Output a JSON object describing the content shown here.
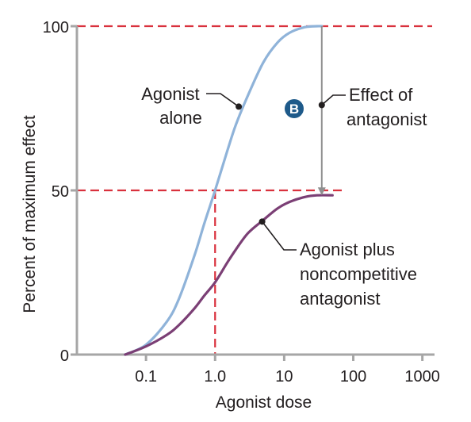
{
  "chart_data": {
    "type": "line",
    "title": "",
    "xlabel": "Agonist dose",
    "ylabel": "Percent of maximum effect",
    "xscale": "log",
    "xlim": [
      0.01,
      1500
    ],
    "ylim": [
      0,
      100
    ],
    "xticks": [
      {
        "value": 0.1,
        "label": "0.1"
      },
      {
        "value": 1,
        "label": "1.0"
      },
      {
        "value": 10,
        "label": "10"
      },
      {
        "value": 100,
        "label": "100"
      },
      {
        "value": 1000,
        "label": "1000"
      }
    ],
    "yticks": [
      {
        "value": 0,
        "label": "0"
      },
      {
        "value": 50,
        "label": "50"
      },
      {
        "value": 100,
        "label": "100"
      }
    ],
    "grid": false,
    "series": [
      {
        "name": "Agonist alone",
        "color": "#8fb3d9",
        "x": [
          0.05,
          0.1,
          0.2,
          0.3,
          0.5,
          0.7,
          1.0,
          1.5,
          2,
          3,
          5,
          8,
          12,
          20,
          30,
          35
        ],
        "y": [
          0,
          3,
          10,
          17,
          30,
          40,
          50,
          62,
          70,
          79,
          89,
          95,
          98,
          99.7,
          100,
          100
        ]
      },
      {
        "name": "Agonist plus noncompetitive antagonist",
        "color": "#7b3f75",
        "x": [
          0.05,
          0.1,
          0.2,
          0.3,
          0.5,
          0.7,
          1.0,
          1.5,
          2,
          3,
          5,
          8,
          12,
          20,
          30,
          50
        ],
        "y": [
          0,
          2.5,
          6,
          9,
          14,
          18,
          22,
          28,
          32,
          37,
          41,
          44.5,
          46.5,
          48,
          48.5,
          48.5
        ]
      }
    ],
    "reference_lines": [
      {
        "type": "horizontal",
        "y": 100,
        "color": "#d9313d",
        "style": "dashed"
      },
      {
        "type": "horizontal",
        "y": 50,
        "color": "#d9313d",
        "style": "dashed"
      },
      {
        "type": "vertical",
        "x": 1.0,
        "color": "#d9313d",
        "style": "dashed"
      }
    ],
    "effect_arrow": {
      "x": 35,
      "from_y": 100,
      "to_y": 48.5,
      "color": "#8f8f8f"
    },
    "annotations": {
      "agonist_alone": [
        "Agonist",
        "alone"
      ],
      "effect": [
        "Effect of",
        "antagonist"
      ],
      "badge": "B",
      "agonist_plus": [
        "Agonist plus",
        "noncompetitive",
        "antagonist"
      ]
    },
    "annotation_points": {
      "agonist_alone": {
        "x": 2.2,
        "y": 75.5
      },
      "effect": {
        "x": 35,
        "y": 76
      },
      "agonist_plus": {
        "x": 4.8,
        "y": 40.5
      }
    },
    "colors": {
      "axis": "#a6a6a6",
      "reference": "#d9313d",
      "badge": "#1e5a8a",
      "leader": "#231f20"
    }
  }
}
